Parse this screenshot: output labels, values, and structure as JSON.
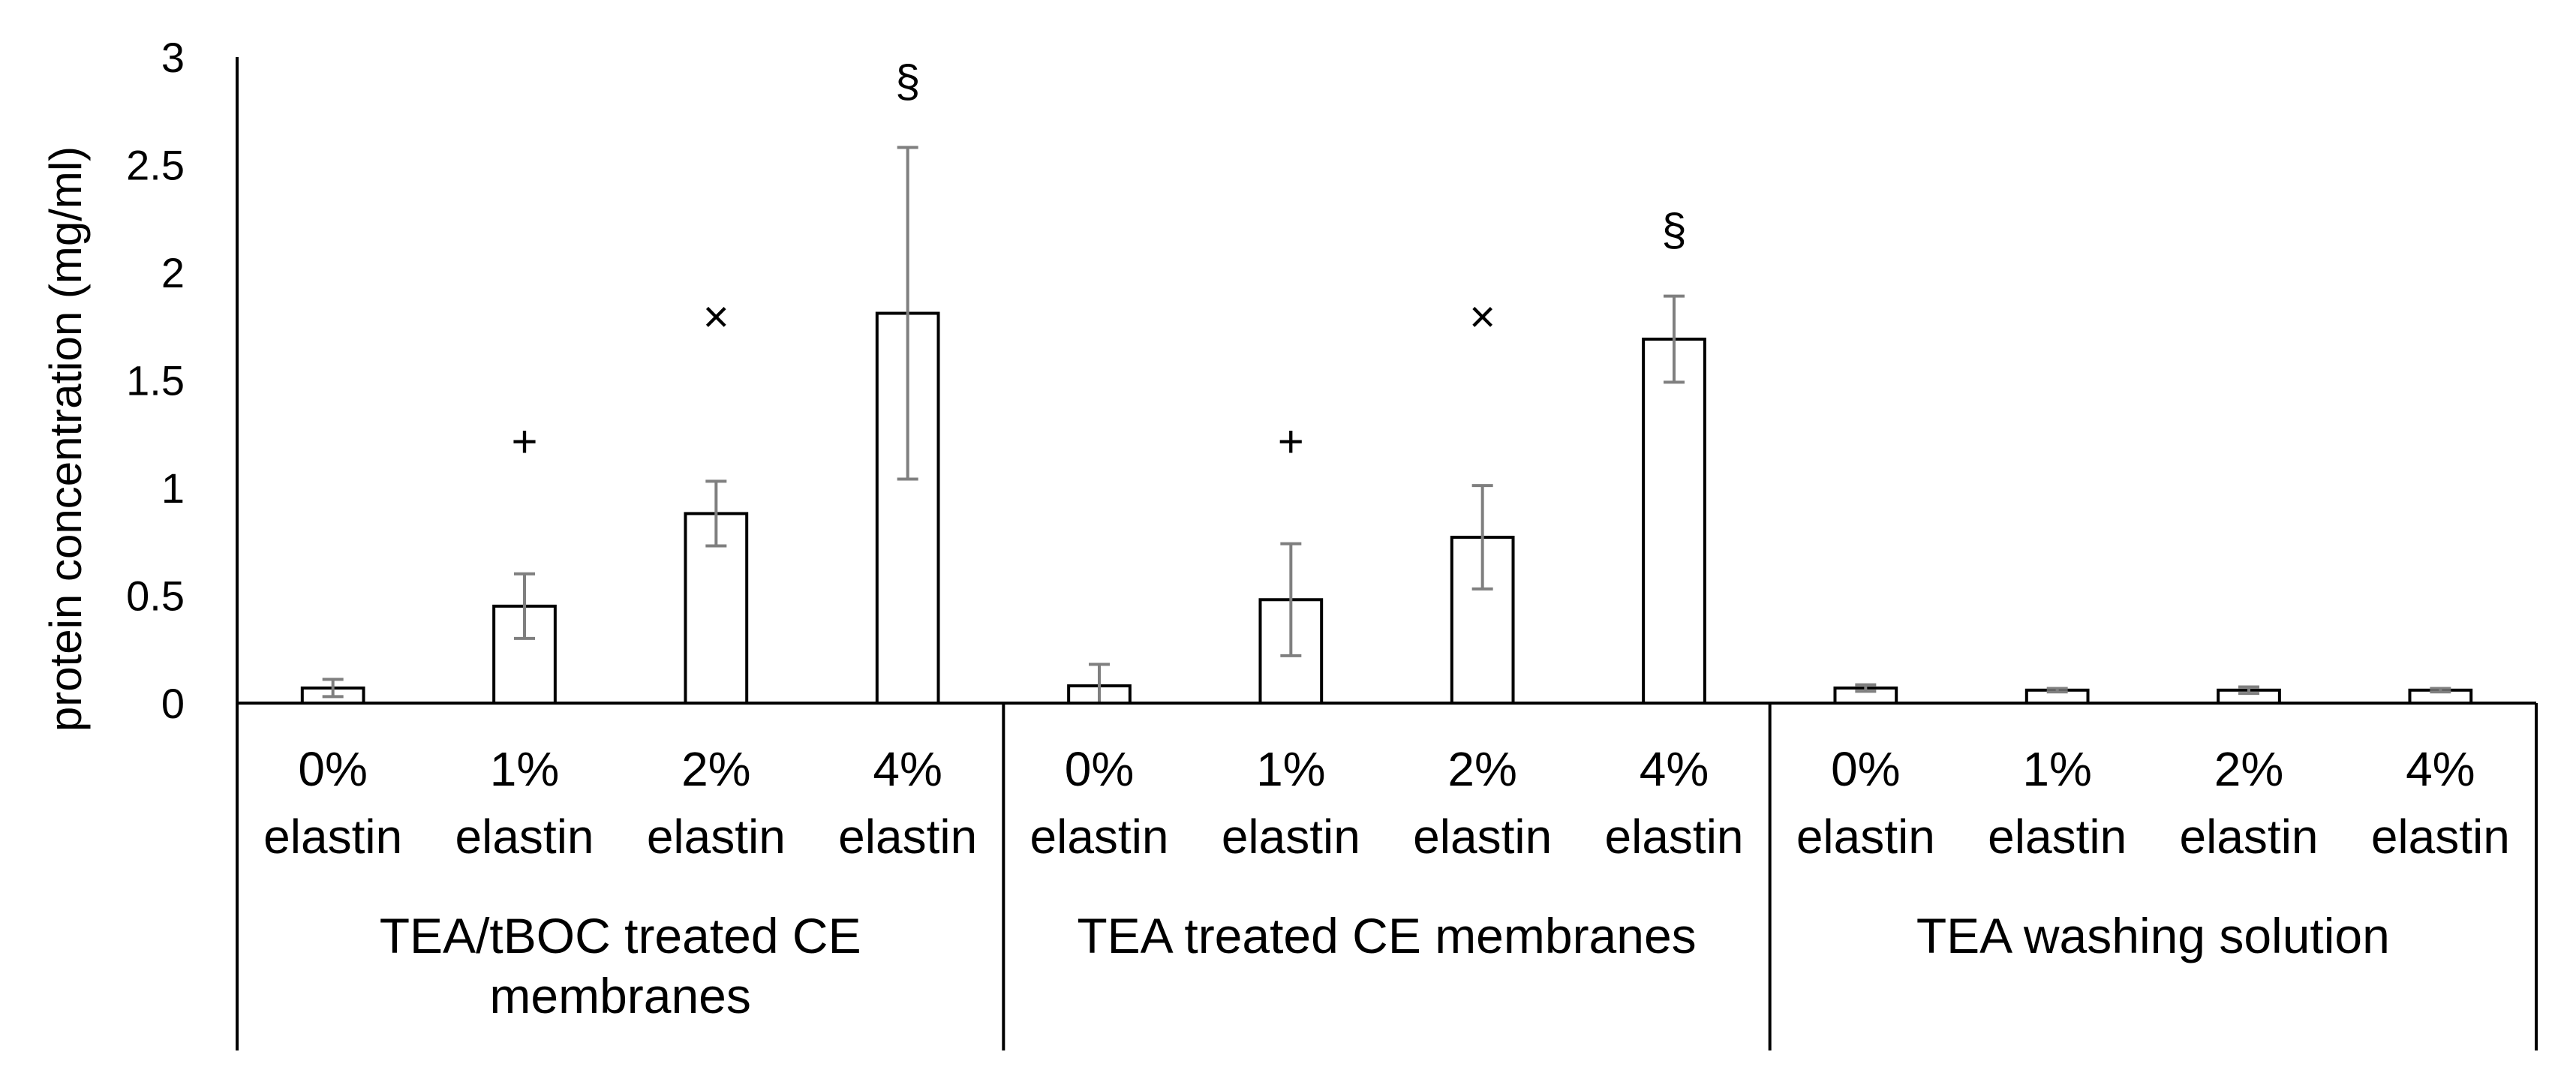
{
  "chart_data": {
    "type": "bar",
    "title": "",
    "xlabel": "",
    "ylabel": "protein concentration (mg/ml)",
    "ylim": [
      0,
      3
    ],
    "yticks": [
      "0",
      "0.5",
      "1",
      "1.5",
      "2",
      "2.5",
      "3"
    ],
    "grid": false,
    "legend": "none",
    "groups": [
      {
        "label": "TEA/tBOC treated  CE membranes",
        "label_lines": [
          "TEA/tBOC treated  CE",
          "membranes"
        ],
        "categories": [
          {
            "line1": "0%",
            "line2": "elastin"
          },
          {
            "line1": "1%",
            "line2": "elastin"
          },
          {
            "line1": "2%",
            "line2": "elastin"
          },
          {
            "line1": "4%",
            "line2": "elastin"
          }
        ],
        "values": [
          0.07,
          0.45,
          0.88,
          1.81
        ],
        "errors": [
          0.04,
          0.15,
          0.15,
          0.77
        ],
        "markers": [
          "",
          "+",
          "×",
          "§"
        ]
      },
      {
        "label": "TEA treated  CE membranes",
        "label_lines": [
          "TEA treated  CE membranes"
        ],
        "categories": [
          {
            "line1": "0%",
            "line2": "elastin"
          },
          {
            "line1": "1%",
            "line2": "elastin"
          },
          {
            "line1": "2%",
            "line2": "elastin"
          },
          {
            "line1": "4%",
            "line2": "elastin"
          }
        ],
        "values": [
          0.08,
          0.48,
          0.77,
          1.69
        ],
        "errors": [
          0.1,
          0.26,
          0.24,
          0.2
        ],
        "markers": [
          "",
          "+",
          "×",
          "§"
        ]
      },
      {
        "label": "TEA washing solution",
        "label_lines": [
          "TEA washing solution"
        ],
        "categories": [
          {
            "line1": "0%",
            "line2": "elastin"
          },
          {
            "line1": "1%",
            "line2": "elastin"
          },
          {
            "line1": "2%",
            "line2": "elastin"
          },
          {
            "line1": "4%",
            "line2": "elastin"
          }
        ],
        "values": [
          0.07,
          0.06,
          0.06,
          0.06
        ],
        "errors": [
          0.015,
          0.008,
          0.015,
          0.008
        ],
        "markers": [
          "",
          "",
          "",
          ""
        ]
      }
    ],
    "colors": {
      "bar_fill": "#ffffff",
      "bar_stroke": "#000000",
      "error_bar": "#7f7f7f",
      "axis": "#000000"
    }
  }
}
